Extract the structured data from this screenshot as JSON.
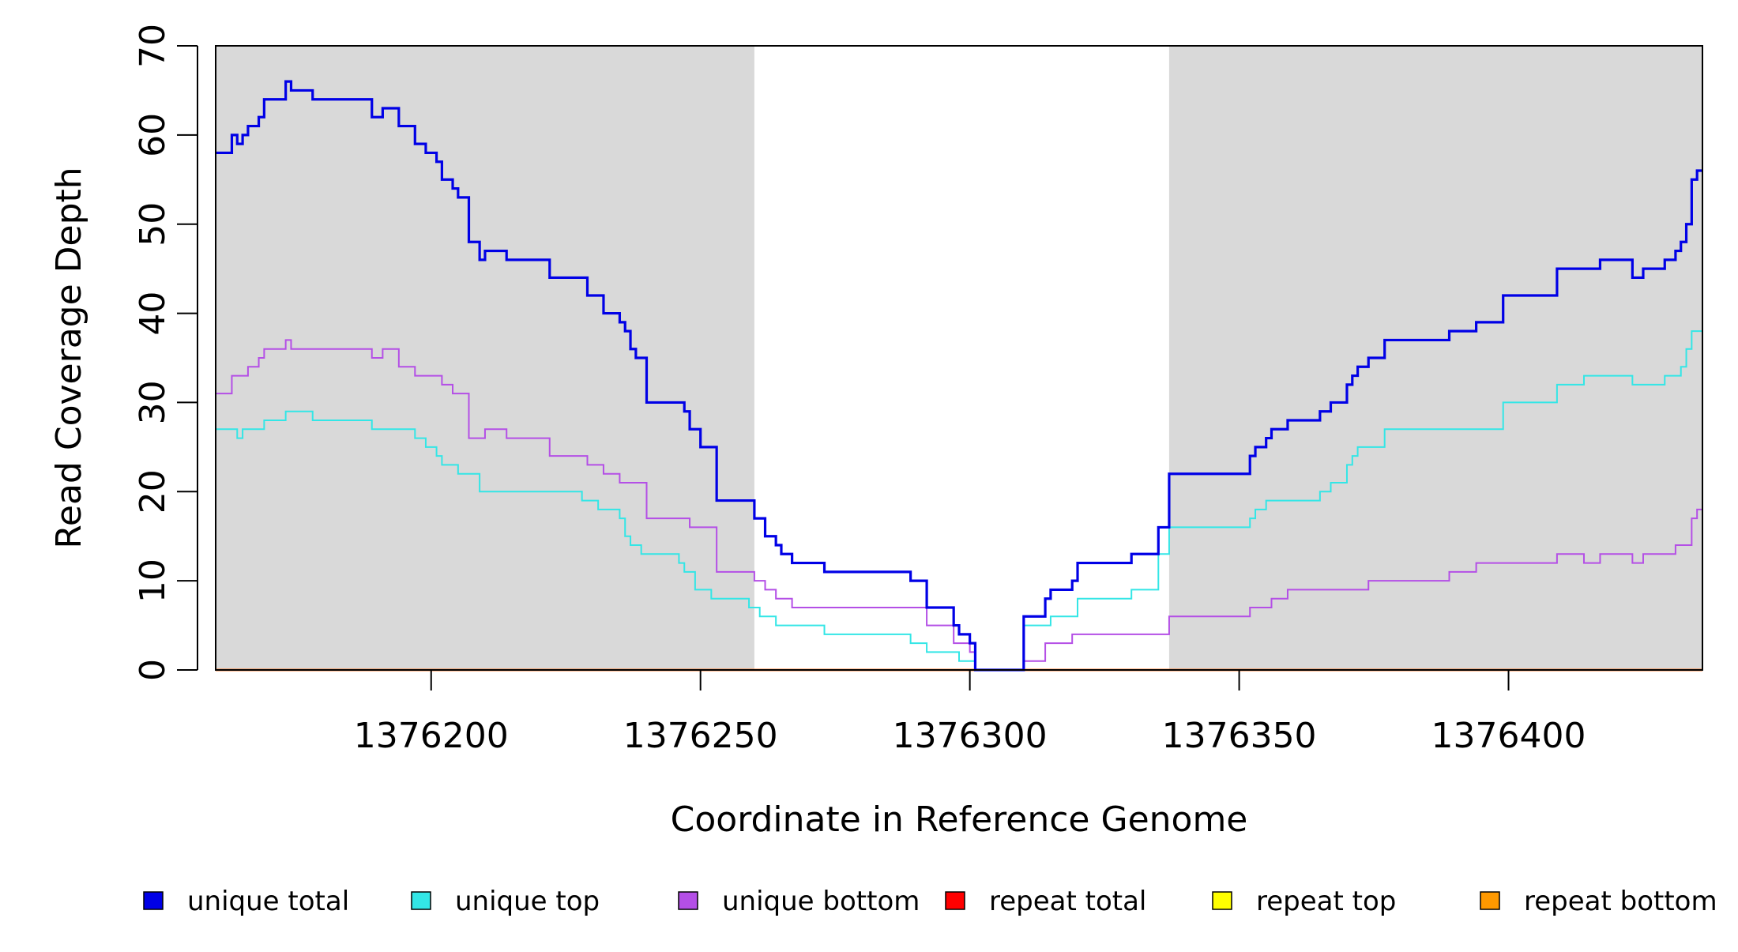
{
  "chart_data": {
    "type": "line",
    "xlabel": "Coordinate in Reference Genome",
    "ylabel": "Read Coverage Depth",
    "xlim": [
      1376160,
      1376436
    ],
    "ylim": [
      0,
      70
    ],
    "x_ticks": [
      {
        "value": 1376200,
        "label": "1376200"
      },
      {
        "value": 1376250,
        "label": "1376250"
      },
      {
        "value": 1376300,
        "label": "1376300"
      },
      {
        "value": 1376350,
        "label": "1376350"
      },
      {
        "value": 1376400,
        "label": "1376400"
      }
    ],
    "y_ticks": [
      {
        "value": 0,
        "label": "0"
      },
      {
        "value": 10,
        "label": "10"
      },
      {
        "value": 20,
        "label": "20"
      },
      {
        "value": 30,
        "label": "30"
      },
      {
        "value": 40,
        "label": "40"
      },
      {
        "value": 50,
        "label": "50"
      },
      {
        "value": 60,
        "label": "60"
      },
      {
        "value": 70,
        "label": "70"
      }
    ],
    "shaded_regions": [
      {
        "x_start": 1376160,
        "x_end": 1376260,
        "color": "#d9d9d9"
      },
      {
        "x_start": 1376337,
        "x_end": 1376436,
        "color": "#d9d9d9"
      }
    ],
    "step_style": "post",
    "legend_position": "bottom",
    "series": [
      {
        "name": "unique total",
        "color": "#0000e6",
        "points": [
          [
            1376160,
            58
          ],
          [
            1376163,
            60
          ],
          [
            1376164,
            59
          ],
          [
            1376165,
            60
          ],
          [
            1376166,
            61
          ],
          [
            1376168,
            62
          ],
          [
            1376169,
            64
          ],
          [
            1376173,
            66
          ],
          [
            1376174,
            65
          ],
          [
            1376178,
            64
          ],
          [
            1376189,
            62
          ],
          [
            1376191,
            63
          ],
          [
            1376194,
            61
          ],
          [
            1376197,
            59
          ],
          [
            1376199,
            58
          ],
          [
            1376201,
            57
          ],
          [
            1376202,
            55
          ],
          [
            1376204,
            54
          ],
          [
            1376205,
            53
          ],
          [
            1376207,
            48
          ],
          [
            1376209,
            46
          ],
          [
            1376210,
            47
          ],
          [
            1376214,
            46
          ],
          [
            1376222,
            44
          ],
          [
            1376229,
            42
          ],
          [
            1376232,
            40
          ],
          [
            1376235,
            39
          ],
          [
            1376236,
            38
          ],
          [
            1376237,
            36
          ],
          [
            1376238,
            35
          ],
          [
            1376240,
            30
          ],
          [
            1376247,
            29
          ],
          [
            1376248,
            27
          ],
          [
            1376250,
            25
          ],
          [
            1376253,
            19
          ],
          [
            1376260,
            17
          ],
          [
            1376262,
            15
          ],
          [
            1376264,
            14
          ],
          [
            1376265,
            13
          ],
          [
            1376267,
            12
          ],
          [
            1376273,
            11
          ],
          [
            1376289,
            10
          ],
          [
            1376292,
            7
          ],
          [
            1376297,
            5
          ],
          [
            1376298,
            4
          ],
          [
            1376300,
            3
          ],
          [
            1376301,
            0
          ],
          [
            1376310,
            6
          ],
          [
            1376314,
            8
          ],
          [
            1376315,
            9
          ],
          [
            1376319,
            10
          ],
          [
            1376320,
            12
          ],
          [
            1376330,
            13
          ],
          [
            1376335,
            16
          ],
          [
            1376337,
            22
          ],
          [
            1376352,
            24
          ],
          [
            1376353,
            25
          ],
          [
            1376355,
            26
          ],
          [
            1376356,
            27
          ],
          [
            1376359,
            28
          ],
          [
            1376365,
            29
          ],
          [
            1376367,
            30
          ],
          [
            1376370,
            32
          ],
          [
            1376371,
            33
          ],
          [
            1376372,
            34
          ],
          [
            1376374,
            35
          ],
          [
            1376377,
            37
          ],
          [
            1376389,
            38
          ],
          [
            1376394,
            39
          ],
          [
            1376399,
            42
          ],
          [
            1376409,
            45
          ],
          [
            1376417,
            46
          ],
          [
            1376423,
            44
          ],
          [
            1376425,
            45
          ],
          [
            1376429,
            46
          ],
          [
            1376431,
            47
          ],
          [
            1376432,
            48
          ],
          [
            1376433,
            50
          ],
          [
            1376434,
            55
          ],
          [
            1376435,
            56
          ]
        ]
      },
      {
        "name": "unique top",
        "color": "#33e6e6",
        "points": [
          [
            1376160,
            27
          ],
          [
            1376164,
            26
          ],
          [
            1376165,
            27
          ],
          [
            1376169,
            28
          ],
          [
            1376173,
            29
          ],
          [
            1376178,
            28
          ],
          [
            1376189,
            27
          ],
          [
            1376197,
            26
          ],
          [
            1376199,
            25
          ],
          [
            1376201,
            24
          ],
          [
            1376202,
            23
          ],
          [
            1376205,
            22
          ],
          [
            1376209,
            20
          ],
          [
            1376228,
            19
          ],
          [
            1376231,
            18
          ],
          [
            1376235,
            17
          ],
          [
            1376236,
            15
          ],
          [
            1376237,
            14
          ],
          [
            1376239,
            13
          ],
          [
            1376246,
            12
          ],
          [
            1376247,
            11
          ],
          [
            1376249,
            9
          ],
          [
            1376252,
            8
          ],
          [
            1376259,
            7
          ],
          [
            1376261,
            6
          ],
          [
            1376264,
            5
          ],
          [
            1376273,
            4
          ],
          [
            1376289,
            3
          ],
          [
            1376292,
            2
          ],
          [
            1376298,
            1
          ],
          [
            1376301,
            0
          ],
          [
            1376310,
            5
          ],
          [
            1376315,
            6
          ],
          [
            1376320,
            8
          ],
          [
            1376330,
            9
          ],
          [
            1376335,
            13
          ],
          [
            1376337,
            16
          ],
          [
            1376352,
            17
          ],
          [
            1376353,
            18
          ],
          [
            1376355,
            19
          ],
          [
            1376365,
            20
          ],
          [
            1376367,
            21
          ],
          [
            1376370,
            23
          ],
          [
            1376371,
            24
          ],
          [
            1376372,
            25
          ],
          [
            1376377,
            27
          ],
          [
            1376399,
            30
          ],
          [
            1376409,
            32
          ],
          [
            1376414,
            33
          ],
          [
            1376423,
            32
          ],
          [
            1376429,
            33
          ],
          [
            1376432,
            34
          ],
          [
            1376433,
            36
          ],
          [
            1376434,
            38
          ]
        ]
      },
      {
        "name": "unique bottom",
        "color": "#b44fe6",
        "points": [
          [
            1376160,
            31
          ],
          [
            1376163,
            33
          ],
          [
            1376166,
            34
          ],
          [
            1376168,
            35
          ],
          [
            1376169,
            36
          ],
          [
            1376173,
            37
          ],
          [
            1376174,
            36
          ],
          [
            1376189,
            35
          ],
          [
            1376191,
            36
          ],
          [
            1376194,
            34
          ],
          [
            1376197,
            33
          ],
          [
            1376202,
            32
          ],
          [
            1376204,
            31
          ],
          [
            1376207,
            26
          ],
          [
            1376210,
            27
          ],
          [
            1376214,
            26
          ],
          [
            1376222,
            24
          ],
          [
            1376229,
            23
          ],
          [
            1376232,
            22
          ],
          [
            1376235,
            21
          ],
          [
            1376240,
            17
          ],
          [
            1376248,
            16
          ],
          [
            1376253,
            11
          ],
          [
            1376260,
            10
          ],
          [
            1376262,
            9
          ],
          [
            1376264,
            8
          ],
          [
            1376267,
            7
          ],
          [
            1376292,
            5
          ],
          [
            1376297,
            3
          ],
          [
            1376300,
            2
          ],
          [
            1376301,
            0
          ],
          [
            1376310,
            1
          ],
          [
            1376314,
            3
          ],
          [
            1376319,
            4
          ],
          [
            1376337,
            6
          ],
          [
            1376352,
            7
          ],
          [
            1376356,
            8
          ],
          [
            1376359,
            9
          ],
          [
            1376374,
            10
          ],
          [
            1376389,
            11
          ],
          [
            1376394,
            12
          ],
          [
            1376409,
            13
          ],
          [
            1376414,
            12
          ],
          [
            1376417,
            13
          ],
          [
            1376423,
            12
          ],
          [
            1376425,
            13
          ],
          [
            1376431,
            14
          ],
          [
            1376434,
            17
          ],
          [
            1376435,
            18
          ]
        ]
      },
      {
        "name": "repeat total",
        "color": "#ff0000",
        "points": [
          [
            1376160,
            0
          ],
          [
            1376436,
            0
          ]
        ]
      },
      {
        "name": "repeat top",
        "color": "#ffff00",
        "points": [
          [
            1376160,
            0
          ],
          [
            1376436,
            0
          ]
        ]
      },
      {
        "name": "repeat bottom",
        "color": "#ff9900",
        "points": [
          [
            1376160,
            0
          ],
          [
            1376436,
            0
          ]
        ]
      }
    ]
  }
}
